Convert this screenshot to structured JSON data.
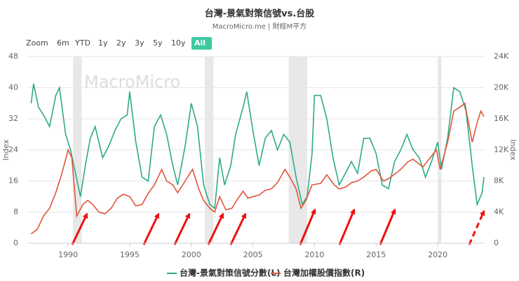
{
  "chart_data": {
    "type": "line",
    "title": "台灣-景氣對策信號vs.台股",
    "subtitle": "MacroMicro.me | 財經M平方",
    "watermark": "MacroMicro",
    "range_buttons": [
      "Zoom",
      "6m",
      "YTD",
      "1y",
      "2y",
      "3y",
      "5y",
      "10y",
      "All"
    ],
    "active_button": "All",
    "y_label": "Index",
    "y2_label": "Index",
    "xlim": [
      1986.75,
      2023.75
    ],
    "xticks": [
      1990,
      1995,
      2000,
      2005,
      2010,
      2015,
      2020
    ],
    "ylim": [
      0,
      48
    ],
    "yticks": [
      0,
      8,
      16,
      24,
      32,
      40,
      48
    ],
    "y2lim": [
      0,
      24000
    ],
    "y2ticks": [
      0,
      {
        "value": 4000,
        "label": "4K"
      },
      {
        "value": 8000,
        "label": "8K"
      },
      {
        "value": 12000,
        "label": "12K"
      },
      {
        "value": 16000,
        "label": "16K"
      },
      {
        "value": 20000,
        "label": "20K"
      },
      {
        "value": 24000,
        "label": "24K"
      }
    ],
    "grid": true,
    "shaded_ranges": [
      [
        1990.4,
        1991.1
      ],
      [
        2001.1,
        2001.8
      ],
      [
        2007.9,
        2009.4
      ],
      [
        2020.0,
        2020.3
      ]
    ],
    "series": [
      {
        "name": "台灣-景氣對策信號分數(L)",
        "color": "#2eaa88",
        "axis": "y",
        "x": [
          1987.0,
          1987.2,
          1987.6,
          1988.0,
          1988.5,
          1989.0,
          1989.3,
          1989.8,
          1990.2,
          1990.6,
          1991.0,
          1991.4,
          1991.8,
          1992.2,
          1992.8,
          1993.3,
          1993.8,
          1994.3,
          1994.8,
          1995.0,
          1995.5,
          1996.0,
          1996.5,
          1997.0,
          1997.5,
          1998.0,
          1998.5,
          1998.9,
          1999.5,
          2000.0,
          2000.5,
          2001.0,
          2001.5,
          2001.9,
          2002.3,
          2002.7,
          2003.2,
          2003.6,
          2004.2,
          2004.5,
          2005.0,
          2005.5,
          2006.0,
          2006.5,
          2007.0,
          2007.5,
          2008.0,
          2008.5,
          2009.0,
          2009.4,
          2009.8,
          2010.0,
          2010.5,
          2011.0,
          2011.5,
          2012.0,
          2012.5,
          2013.0,
          2013.5,
          2014.0,
          2014.5,
          2015.0,
          2015.5,
          2016.0,
          2016.5,
          2017.0,
          2017.5,
          2018.0,
          2018.5,
          2019.0,
          2019.5,
          2020.0,
          2020.3,
          2020.8,
          2021.3,
          2021.8,
          2022.3,
          2022.8,
          2023.2,
          2023.6,
          2023.75
        ],
        "values": [
          36,
          41,
          35,
          33,
          30,
          38,
          40,
          28,
          24,
          18,
          12,
          20,
          27,
          30,
          22,
          25,
          29,
          32,
          33,
          39,
          26,
          17,
          16,
          30,
          33,
          28,
          20,
          15,
          25,
          36,
          30,
          15,
          10,
          9,
          22,
          15,
          20,
          28,
          35,
          39,
          29,
          20,
          27,
          29,
          24,
          28,
          26,
          17,
          10,
          12,
          23,
          38,
          38,
          32,
          22,
          15,
          18,
          21,
          18,
          27,
          27,
          23,
          15,
          14,
          21,
          24,
          28,
          24,
          22,
          17,
          21,
          26,
          19,
          27,
          40,
          39,
          34,
          20,
          10,
          13,
          17
        ]
      },
      {
        "name": "台灣加權股價指數(R)",
        "color": "#e0553a",
        "axis": "y2",
        "x": [
          1987.0,
          1987.5,
          1988.0,
          1988.5,
          1989.0,
          1989.5,
          1990.0,
          1990.3,
          1990.7,
          1991.2,
          1991.6,
          1992.0,
          1992.5,
          1993.0,
          1993.5,
          1994.0,
          1994.5,
          1995.0,
          1995.5,
          1996.0,
          1996.5,
          1997.0,
          1997.6,
          1998.0,
          1998.5,
          1998.9,
          1999.5,
          2000.1,
          2000.6,
          2001.0,
          2001.5,
          2001.9,
          2002.3,
          2002.8,
          2003.3,
          2003.8,
          2004.2,
          2004.6,
          2005.0,
          2005.5,
          2006.0,
          2006.5,
          2007.0,
          2007.6,
          2008.0,
          2008.5,
          2008.9,
          2009.3,
          2009.8,
          2010.5,
          2011.0,
          2011.6,
          2012.0,
          2012.5,
          2013.0,
          2013.5,
          2014.0,
          2014.6,
          2015.0,
          2015.6,
          2016.0,
          2016.6,
          2017.0,
          2017.6,
          2018.0,
          2018.8,
          2019.3,
          2019.9,
          2020.2,
          2020.8,
          2021.3,
          2021.8,
          2022.2,
          2022.8,
          2023.2,
          2023.5,
          2023.75
        ],
        "values": [
          1200,
          1800,
          3500,
          4500,
          6500,
          9000,
          12000,
          11000,
          3500,
          5000,
          5500,
          5000,
          4000,
          3800,
          4500,
          5800,
          6300,
          6000,
          4800,
          5000,
          6400,
          7500,
          9500,
          8000,
          7500,
          6500,
          8000,
          9500,
          7000,
          5500,
          4500,
          4000,
          6000,
          4300,
          4500,
          5800,
          6700,
          5800,
          6000,
          6200,
          6800,
          7000,
          7800,
          9500,
          8500,
          7000,
          4500,
          5500,
          7500,
          7700,
          8800,
          7500,
          7000,
          7200,
          7800,
          8000,
          8500,
          9300,
          9500,
          8000,
          8300,
          9000,
          9500,
          10500,
          10800,
          9800,
          10800,
          12000,
          9500,
          13000,
          17000,
          17500,
          18000,
          13000,
          15500,
          17000,
          16300
        ]
      }
    ]
  }
}
